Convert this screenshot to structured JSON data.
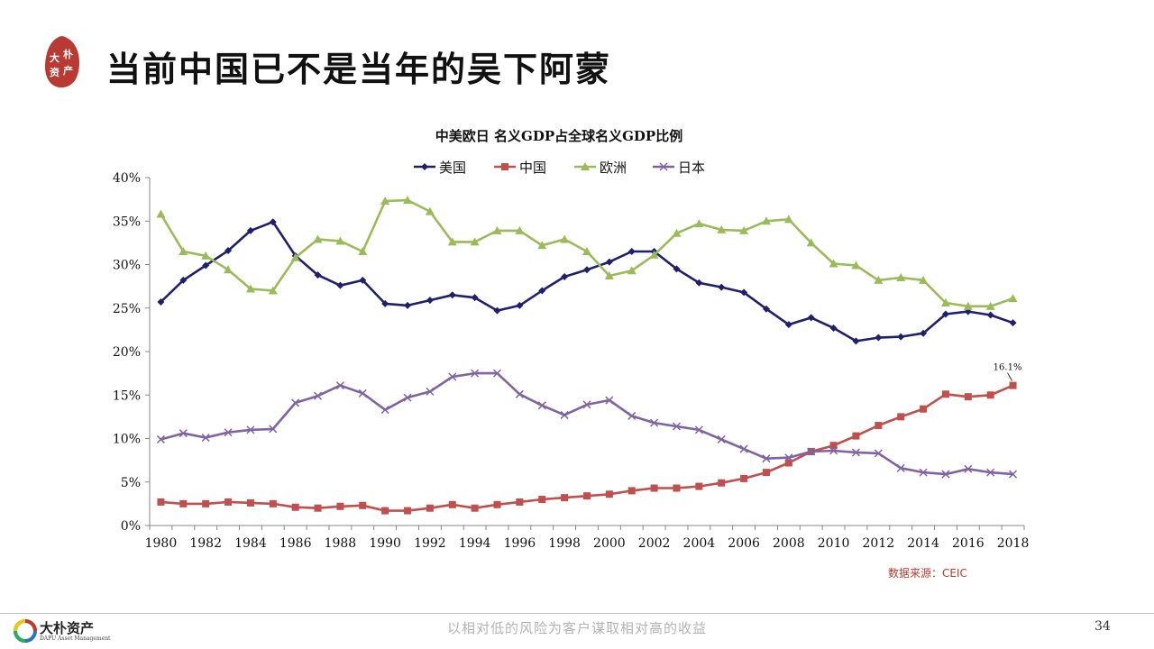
{
  "slide": {
    "title": "当前中国已不是当年的吴下阿蒙",
    "logo_text": [
      "大",
      "朴",
      "资",
      "产"
    ],
    "source": "数据来源：CEIC",
    "tagline": "以相对低的风险为客户谋取相对高的收益",
    "page_number": "34",
    "footer_brand": "大朴资产",
    "footer_brand_en": "DAPU Asset Management"
  },
  "chart_data": {
    "type": "line",
    "title": "中美欧日 名义GDP占全球名义GDP比例",
    "x": [
      1980,
      1981,
      1982,
      1983,
      1984,
      1985,
      1986,
      1987,
      1988,
      1989,
      1990,
      1991,
      1992,
      1993,
      1994,
      1995,
      1996,
      1997,
      1998,
      1999,
      2000,
      2001,
      2002,
      2003,
      2004,
      2005,
      2006,
      2007,
      2008,
      2009,
      2010,
      2011,
      2012,
      2013,
      2014,
      2015,
      2016,
      2017,
      2018
    ],
    "x_tick_labels": [
      "1980",
      "1982",
      "1984",
      "1986",
      "1988",
      "1990",
      "1992",
      "1994",
      "1996",
      "1998",
      "2000",
      "2002",
      "2004",
      "2006",
      "2008",
      "2010",
      "2012",
      "2014",
      "2016",
      "2018"
    ],
    "y_tick_labels": [
      "0%",
      "5%",
      "10%",
      "15%",
      "20%",
      "25%",
      "30%",
      "35%",
      "40%"
    ],
    "ylim": [
      0,
      40
    ],
    "y_unit": "%",
    "grid": false,
    "legend_position": "top-center",
    "series": [
      {
        "name": "美国",
        "color": "#1f1f6e",
        "marker": "diamond",
        "values": [
          25.7,
          28.2,
          29.9,
          31.6,
          33.9,
          34.9,
          31.0,
          28.8,
          27.6,
          28.2,
          25.5,
          25.3,
          25.9,
          26.5,
          26.2,
          24.7,
          25.3,
          27.0,
          28.6,
          29.4,
          30.3,
          31.5,
          31.5,
          29.5,
          27.9,
          27.4,
          26.8,
          24.9,
          23.1,
          23.9,
          22.7,
          21.2,
          21.6,
          21.7,
          22.1,
          24.3,
          24.6,
          24.2,
          23.3
        ]
      },
      {
        "name": "中国",
        "color": "#c0504d",
        "marker": "square",
        "values": [
          2.7,
          2.5,
          2.5,
          2.7,
          2.6,
          2.5,
          2.1,
          2.0,
          2.2,
          2.3,
          1.7,
          1.7,
          2.0,
          2.4,
          2.0,
          2.4,
          2.7,
          3.0,
          3.2,
          3.4,
          3.6,
          4.0,
          4.3,
          4.3,
          4.5,
          4.9,
          5.4,
          6.1,
          7.2,
          8.5,
          9.2,
          10.3,
          11.5,
          12.5,
          13.4,
          15.1,
          14.8,
          15.0,
          16.1
        ]
      },
      {
        "name": "欧洲",
        "color": "#9bbb59",
        "marker": "triangle",
        "values": [
          35.8,
          31.5,
          31.0,
          29.4,
          27.2,
          27.0,
          30.8,
          32.9,
          32.7,
          31.5,
          37.3,
          37.4,
          36.1,
          32.6,
          32.6,
          33.9,
          33.9,
          32.2,
          32.9,
          31.5,
          28.7,
          29.3,
          31.1,
          33.6,
          34.7,
          34.0,
          33.9,
          35.0,
          35.2,
          32.5,
          30.1,
          29.9,
          28.2,
          28.5,
          28.2,
          25.6,
          25.2,
          25.2,
          26.1
        ]
      },
      {
        "name": "日本",
        "color": "#8064a2",
        "marker": "x",
        "values": [
          9.9,
          10.6,
          10.1,
          10.7,
          11.0,
          11.1,
          14.1,
          14.9,
          16.1,
          15.2,
          13.3,
          14.7,
          15.4,
          17.1,
          17.5,
          17.5,
          15.1,
          13.8,
          12.7,
          13.9,
          14.4,
          12.6,
          11.8,
          11.4,
          11.0,
          9.9,
          8.8,
          7.7,
          7.8,
          8.5,
          8.6,
          8.4,
          8.3,
          6.6,
          6.1,
          5.9,
          6.5,
          6.1,
          5.9
        ]
      }
    ],
    "annotations": [
      {
        "text": "16.1%",
        "series": "中国",
        "x": 2018,
        "y": 16.1
      }
    ]
  }
}
